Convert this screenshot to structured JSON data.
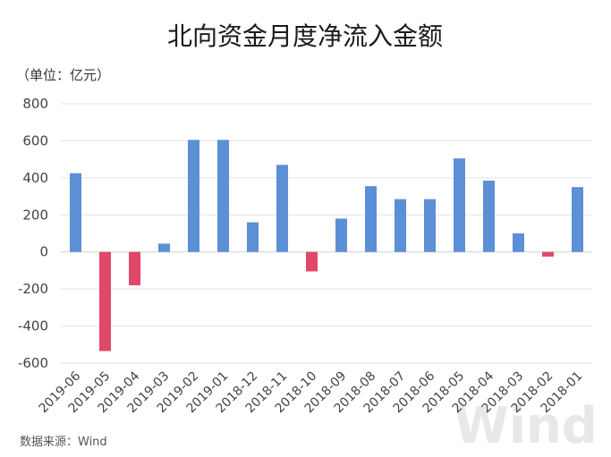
{
  "chart_data": {
    "type": "bar",
    "title": "北向资金月度净流入金额",
    "unit_label": "（单位：亿元）",
    "source": "数据来源：Wind",
    "watermark": "Wind",
    "categories": [
      "2019-06",
      "2019-05",
      "2019-04",
      "2019-03",
      "2019-02",
      "2019-01",
      "2018-12",
      "2018-11",
      "2018-10",
      "2018-09",
      "2018-08",
      "2018-07",
      "2018-06",
      "2018-05",
      "2018-04",
      "2018-03",
      "2018-02",
      "2018-01"
    ],
    "values": [
      425,
      -535,
      -180,
      45,
      605,
      605,
      160,
      470,
      -105,
      180,
      355,
      285,
      285,
      505,
      385,
      100,
      -25,
      350
    ],
    "ylim": [
      -600,
      800
    ],
    "yticks": [
      800,
      600,
      400,
      200,
      0,
      -200,
      -400,
      -600
    ],
    "grid": true,
    "legend": "none",
    "colors": {
      "positive": "#5b8fd6",
      "negative": "#e0486a"
    }
  }
}
